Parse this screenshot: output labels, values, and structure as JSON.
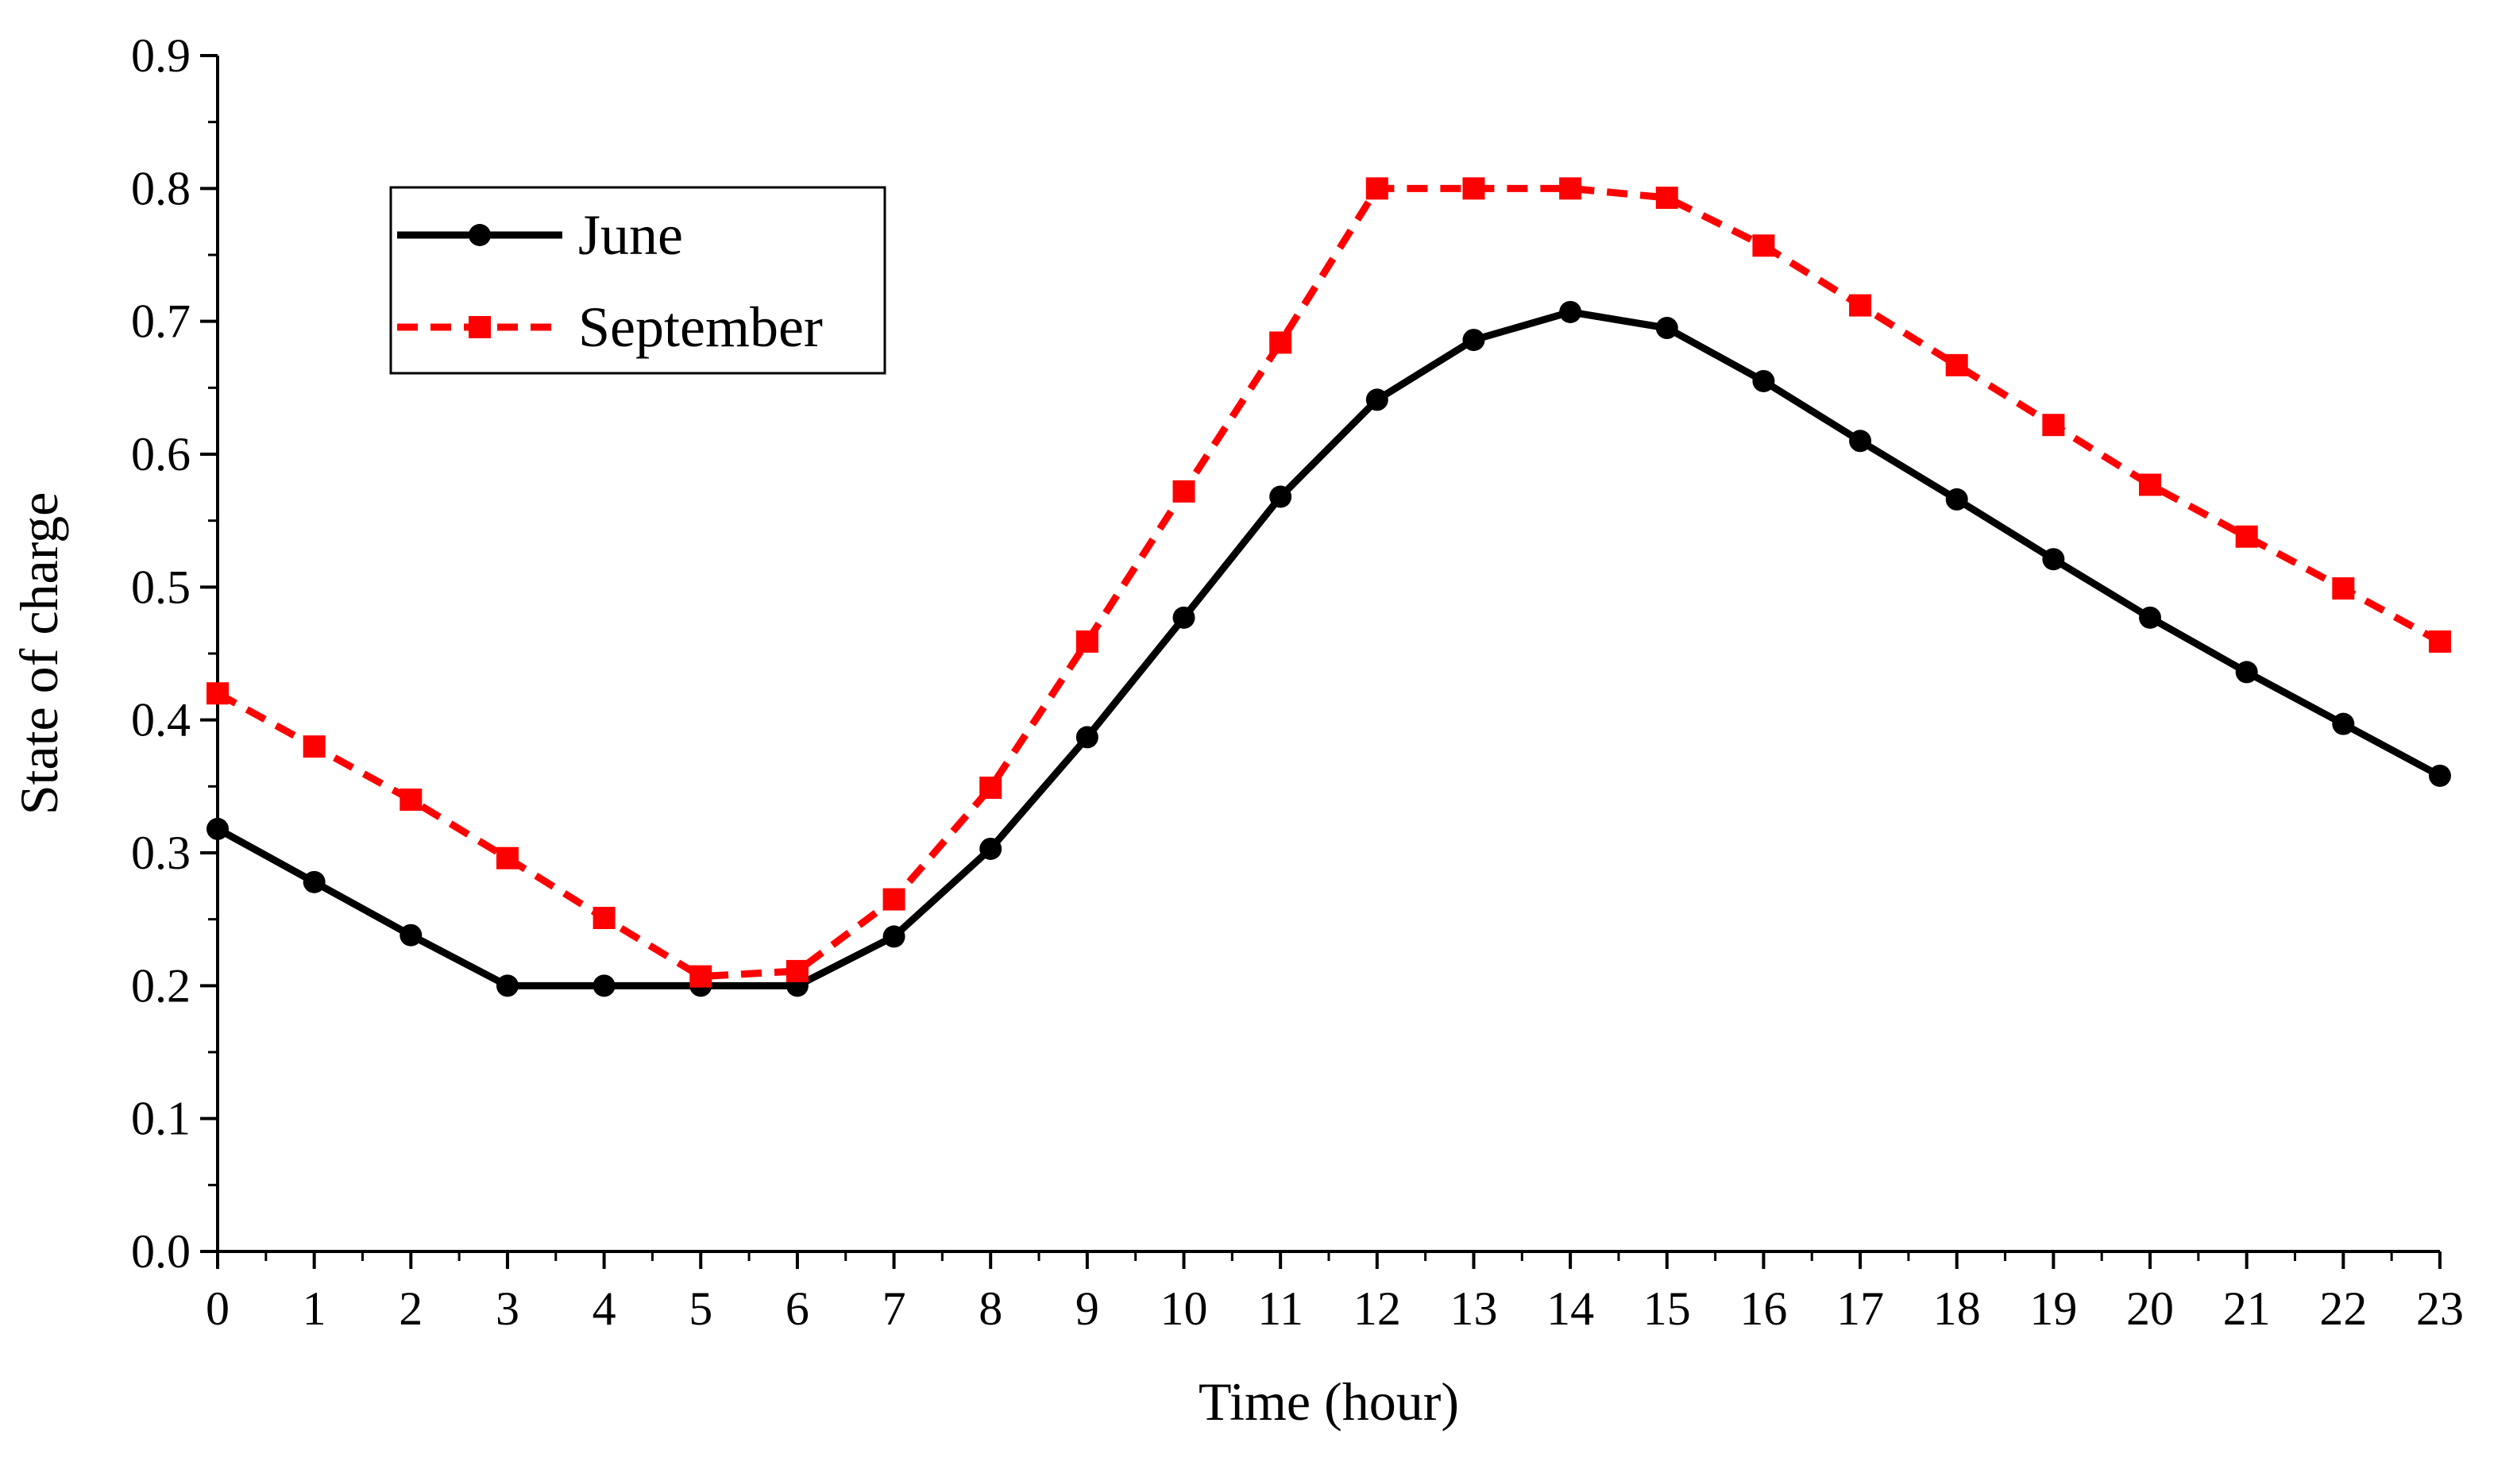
{
  "chart_data": {
    "type": "line",
    "title": "",
    "xlabel": "Time (hour)",
    "ylabel": "State of charge",
    "xlim": [
      0,
      23
    ],
    "ylim": [
      0,
      0.9
    ],
    "grid": false,
    "legend_position": "top-left",
    "x": [
      0,
      1,
      2,
      3,
      4,
      5,
      6,
      7,
      8,
      9,
      10,
      11,
      12,
      13,
      14,
      15,
      16,
      17,
      18,
      19,
      20,
      21,
      22,
      23
    ],
    "x_tick_labels": [
      "0",
      "1",
      "2",
      "3",
      "4",
      "5",
      "6",
      "7",
      "8",
      "9",
      "10",
      "11",
      "12",
      "13",
      "14",
      "15",
      "16",
      "17",
      "18",
      "19",
      "20",
      "21",
      "22",
      "23"
    ],
    "y_tick_values": [
      0,
      0.1,
      0.2,
      0.3,
      0.4,
      0.5,
      0.6,
      0.7,
      0.8,
      0.9
    ],
    "y_tick_labels": [
      "0.0",
      "0.1",
      "0.2",
      "0.3",
      "0.4",
      "0.5",
      "0.6",
      "0.7",
      "0.8",
      "0.9"
    ],
    "series": [
      {
        "name": "June",
        "color": "#000000",
        "line_style": "solid",
        "marker": "circle",
        "values": [
          0.318,
          0.278,
          0.238,
          0.2,
          0.2,
          0.2,
          0.2,
          0.237,
          0.303,
          0.387,
          0.477,
          0.568,
          0.641,
          0.686,
          0.707,
          0.695,
          0.655,
          0.61,
          0.566,
          0.521,
          0.477,
          0.436,
          0.397,
          0.358
        ]
      },
      {
        "name": "September",
        "color": "#ff0000",
        "line_style": "dashed",
        "marker": "square",
        "values": [
          0.42,
          0.38,
          0.34,
          0.296,
          0.251,
          0.207,
          0.211,
          0.265,
          0.349,
          0.459,
          0.572,
          0.684,
          0.8,
          0.8,
          0.8,
          0.793,
          0.757,
          0.712,
          0.667,
          0.622,
          0.577,
          0.538,
          0.499,
          0.459
        ]
      }
    ]
  }
}
